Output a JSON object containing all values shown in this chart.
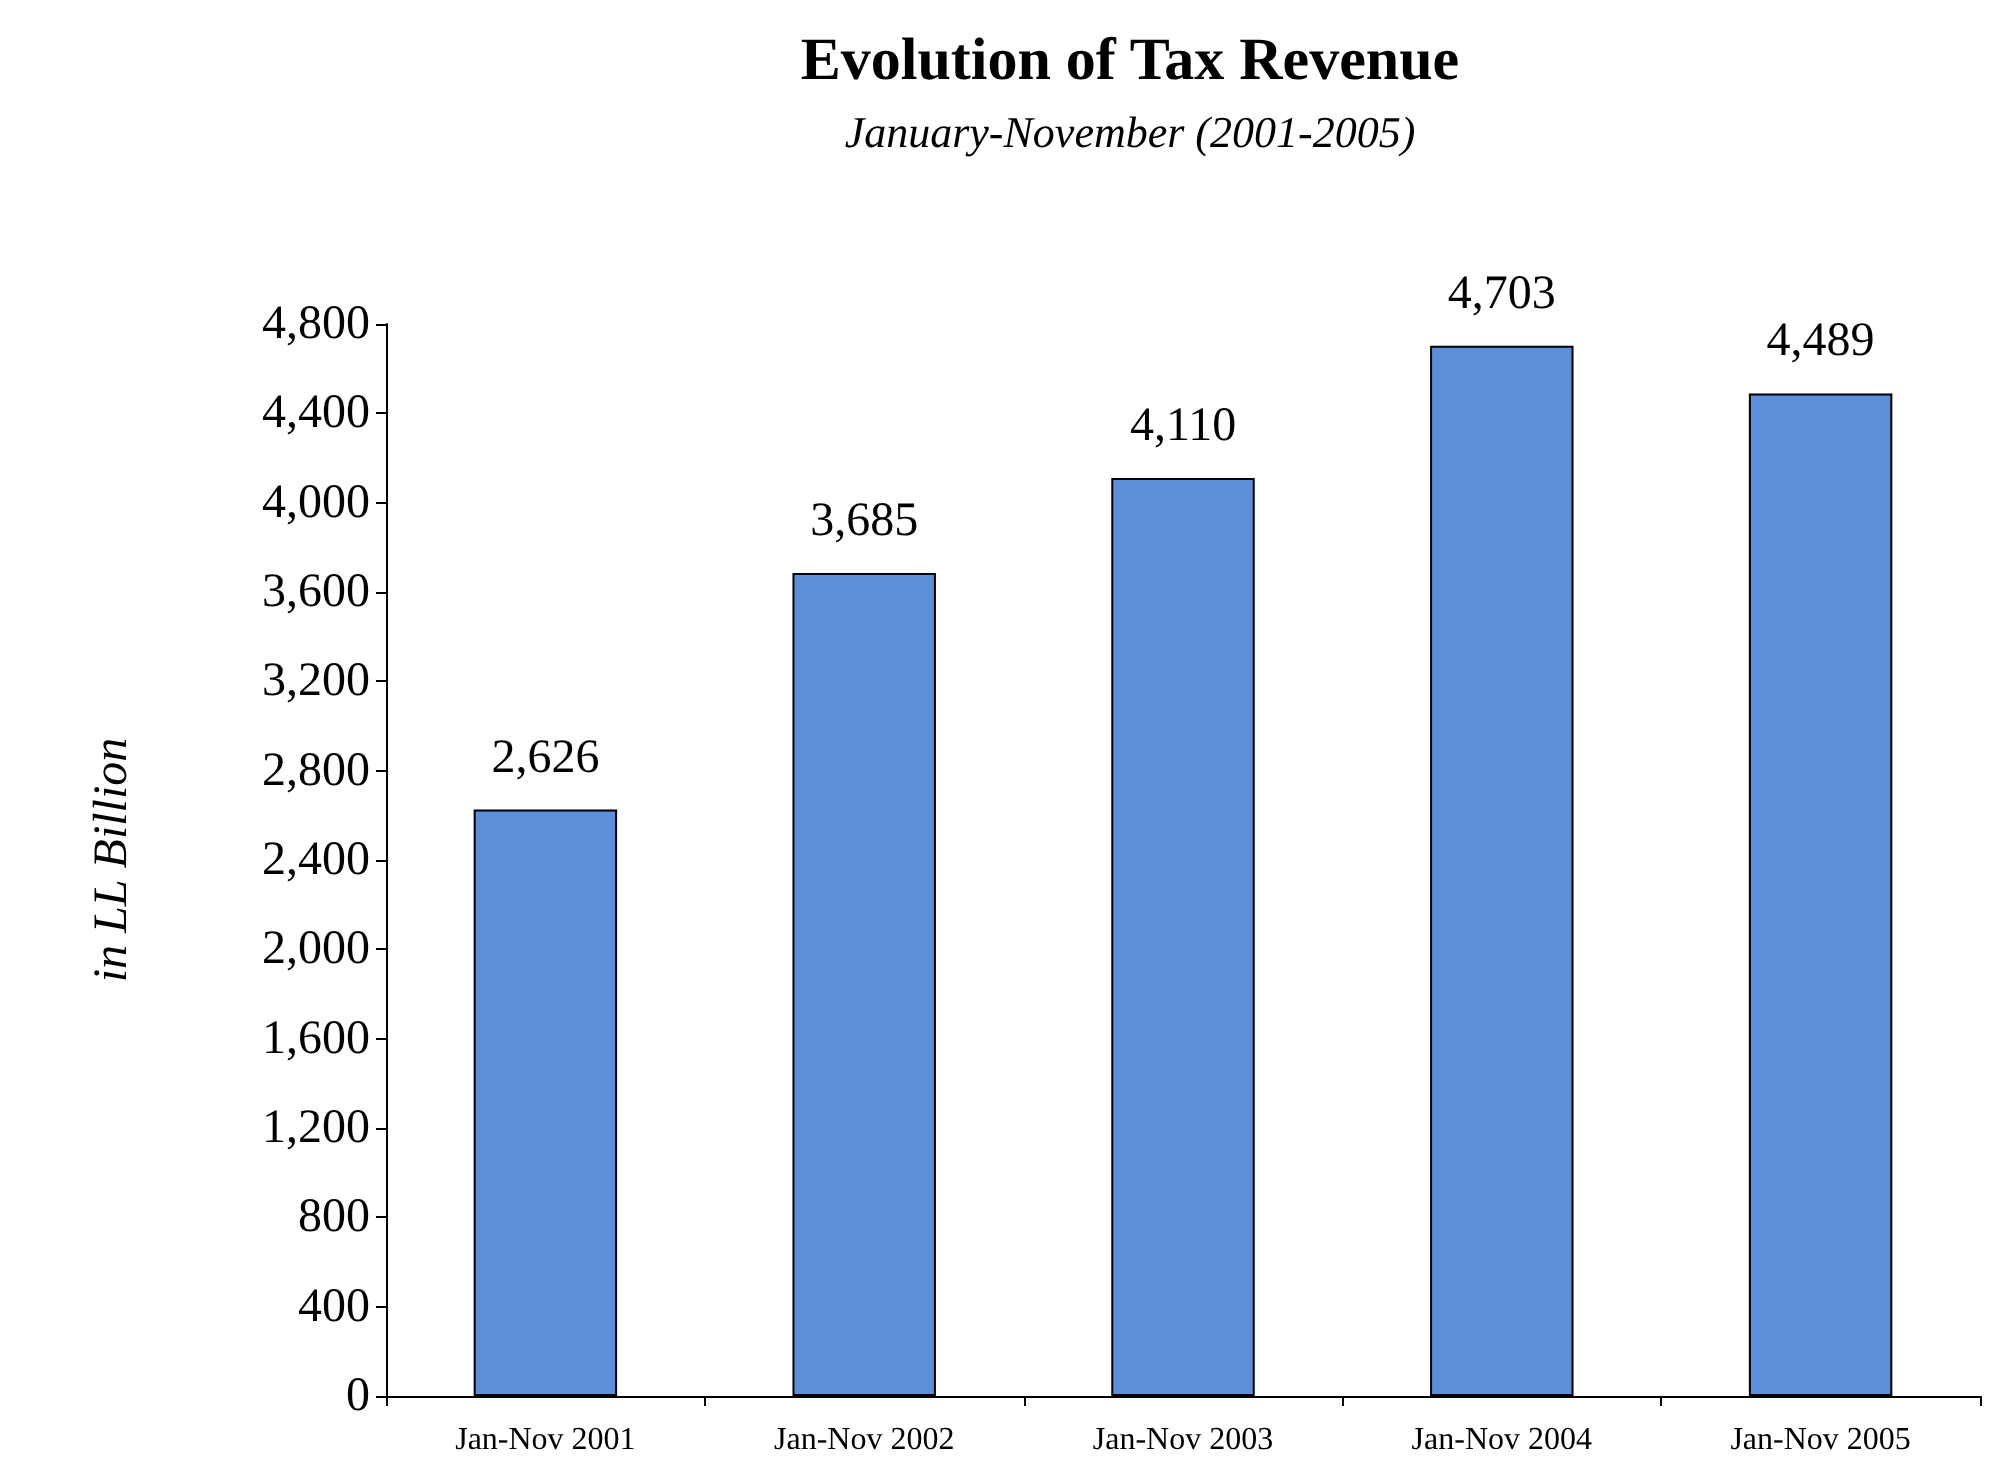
{
  "chart_data": {
    "type": "bar",
    "title": "Evolution of Tax Revenue",
    "subtitle": "January-November (2001-2005)",
    "ylabel": "in LL Billion",
    "categories": [
      "Jan-Nov 2001",
      "Jan-Nov 2002",
      "Jan-Nov 2003",
      "Jan-Nov 2004",
      "Jan-Nov 2005"
    ],
    "values": [
      2626,
      3685,
      4110,
      4703,
      4489
    ],
    "value_labels": [
      "2,626",
      "3,685",
      "4,110",
      "4,703",
      "4,489"
    ],
    "color": "#5b8fd9",
    "ylim": [
      0,
      4800
    ],
    "yticks": [
      0,
      400,
      800,
      {
        "value": 1200,
        "label": "1,200"
      },
      {
        "value": 1600,
        "label": "1,600"
      },
      {
        "value": 2000,
        "label": "2,000"
      },
      {
        "value": 2400,
        "label": "2,400"
      },
      {
        "value": 2800,
        "label": "2,800"
      },
      {
        "value": 3200,
        "label": "3,200"
      },
      {
        "value": 3600,
        "label": "3,600"
      },
      {
        "value": 4000,
        "label": "4,000"
      },
      {
        "value": 4400,
        "label": "4,400"
      },
      {
        "value": 4800,
        "label": "4,800"
      }
    ],
    "grid": false
  }
}
